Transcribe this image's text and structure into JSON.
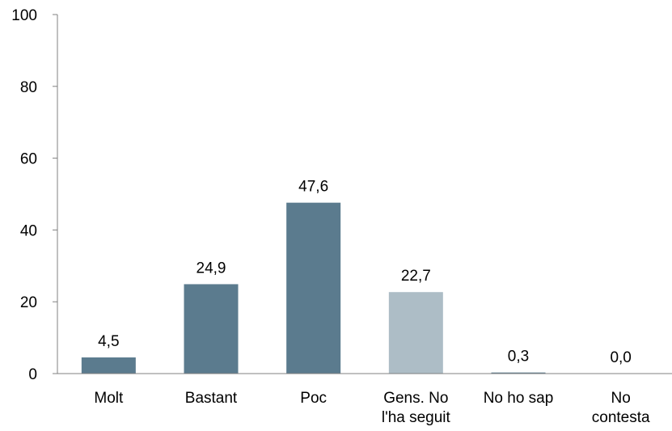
{
  "chart_data": {
    "type": "bar",
    "categories": [
      [
        "Molt"
      ],
      [
        "Bastant"
      ],
      [
        "Poc"
      ],
      [
        "Gens. No",
        "l'ha seguit"
      ],
      [
        "No ho sap"
      ],
      [
        "No",
        "contesta"
      ]
    ],
    "values": [
      4.5,
      24.9,
      47.6,
      22.7,
      0.3,
      0.0
    ],
    "value_labels": [
      "4,5",
      "24,9",
      "47,6",
      "22,7",
      "0,3",
      "0,0"
    ],
    "bar_colors": [
      "#5b7b8e",
      "#5b7b8e",
      "#5b7b8e",
      "#adbdc6",
      "#5b7b8e",
      "#5b7b8e"
    ],
    "ylim": [
      0,
      100
    ],
    "yticks": [
      0,
      20,
      40,
      60,
      80,
      100
    ],
    "ytick_labels": [
      "0",
      "20",
      "40",
      "60",
      "80",
      "100"
    ],
    "title": "",
    "xlabel": "",
    "ylabel": "",
    "grid": false,
    "axis_color": "#808080"
  }
}
